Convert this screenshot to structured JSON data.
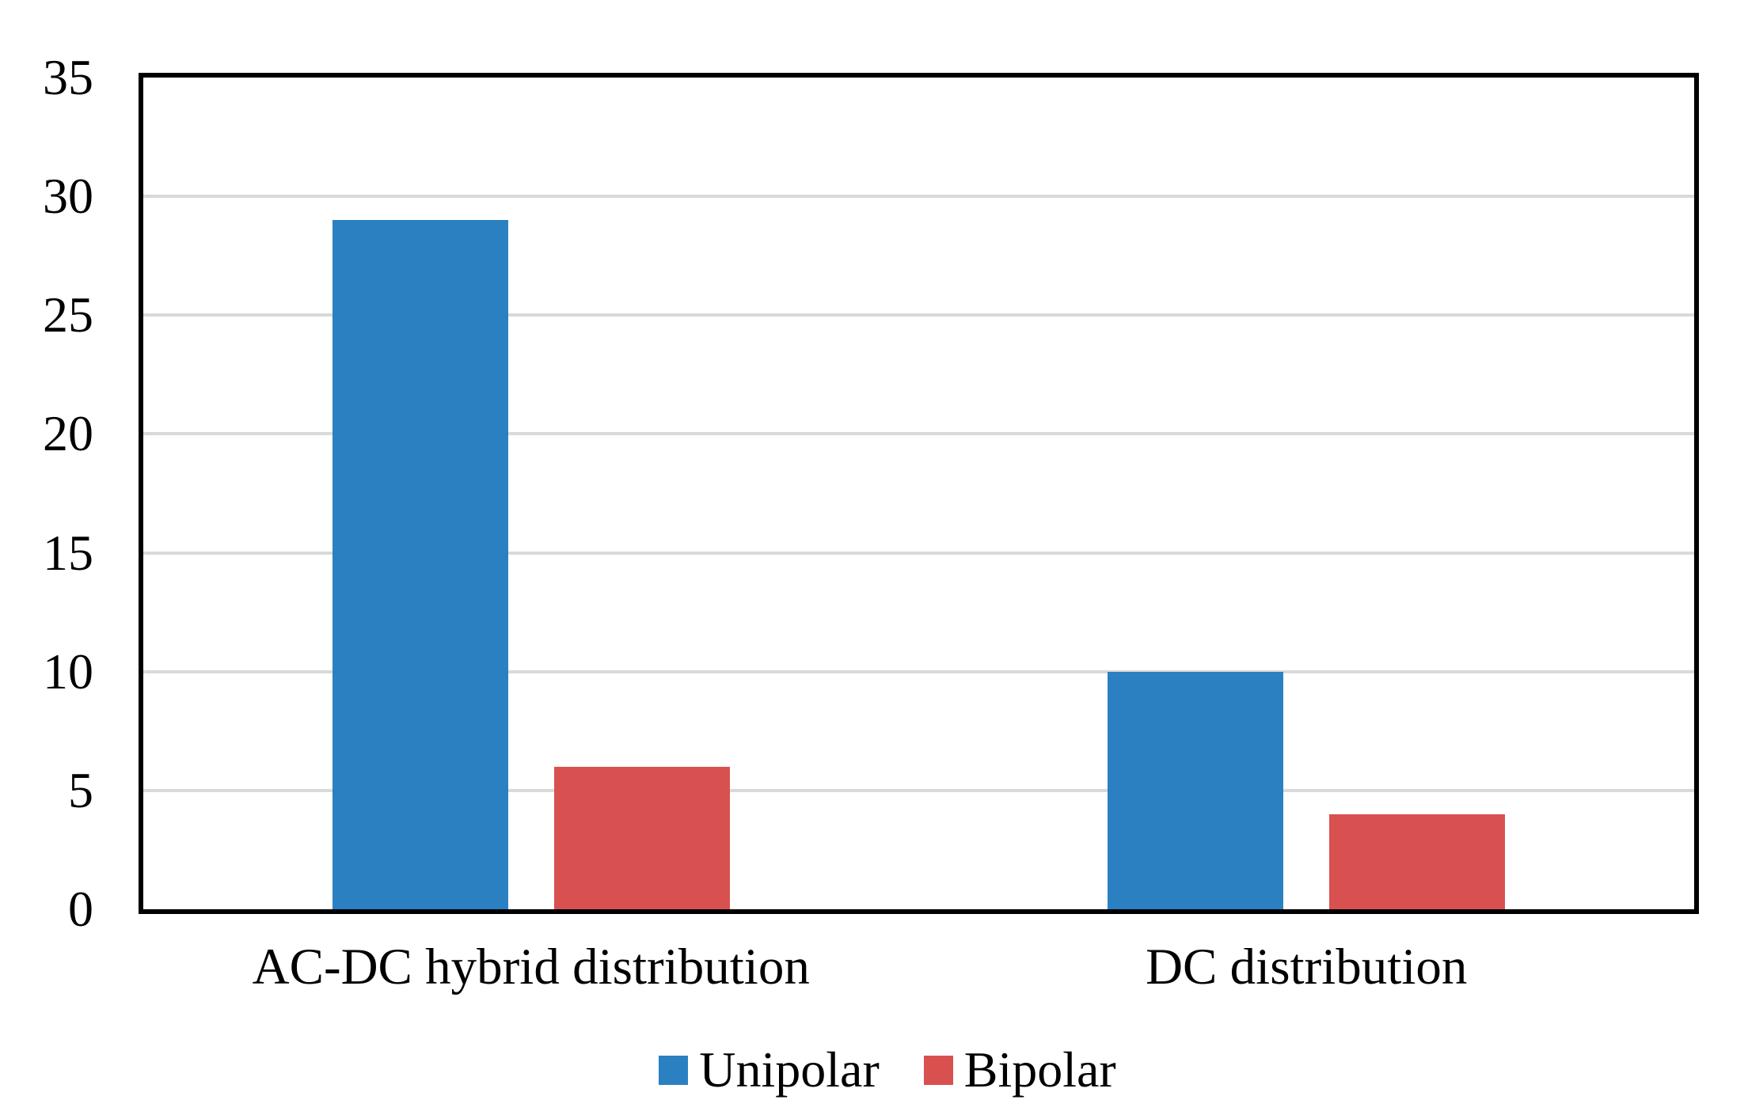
{
  "chart_data": {
    "type": "bar",
    "title": "",
    "categories": [
      "AC-DC hybrid distribution",
      "DC distribution"
    ],
    "series": [
      {
        "name": "Unipolar",
        "color": "#2a80c1",
        "values": [
          29,
          10
        ]
      },
      {
        "name": "Bipolar",
        "color": "#d85150",
        "values": [
          6,
          4
        ]
      }
    ],
    "xlabel": "",
    "ylabel": "",
    "ylim": [
      0,
      35
    ],
    "yticks": [
      "0",
      "5",
      "10",
      "15",
      "20",
      "25",
      "30",
      "35"
    ],
    "grid": true,
    "gridline_color": "#d9d9d9",
    "plot_border_color": "#000000",
    "background_color": "#ffffff",
    "legend_position": "bottom-center"
  }
}
